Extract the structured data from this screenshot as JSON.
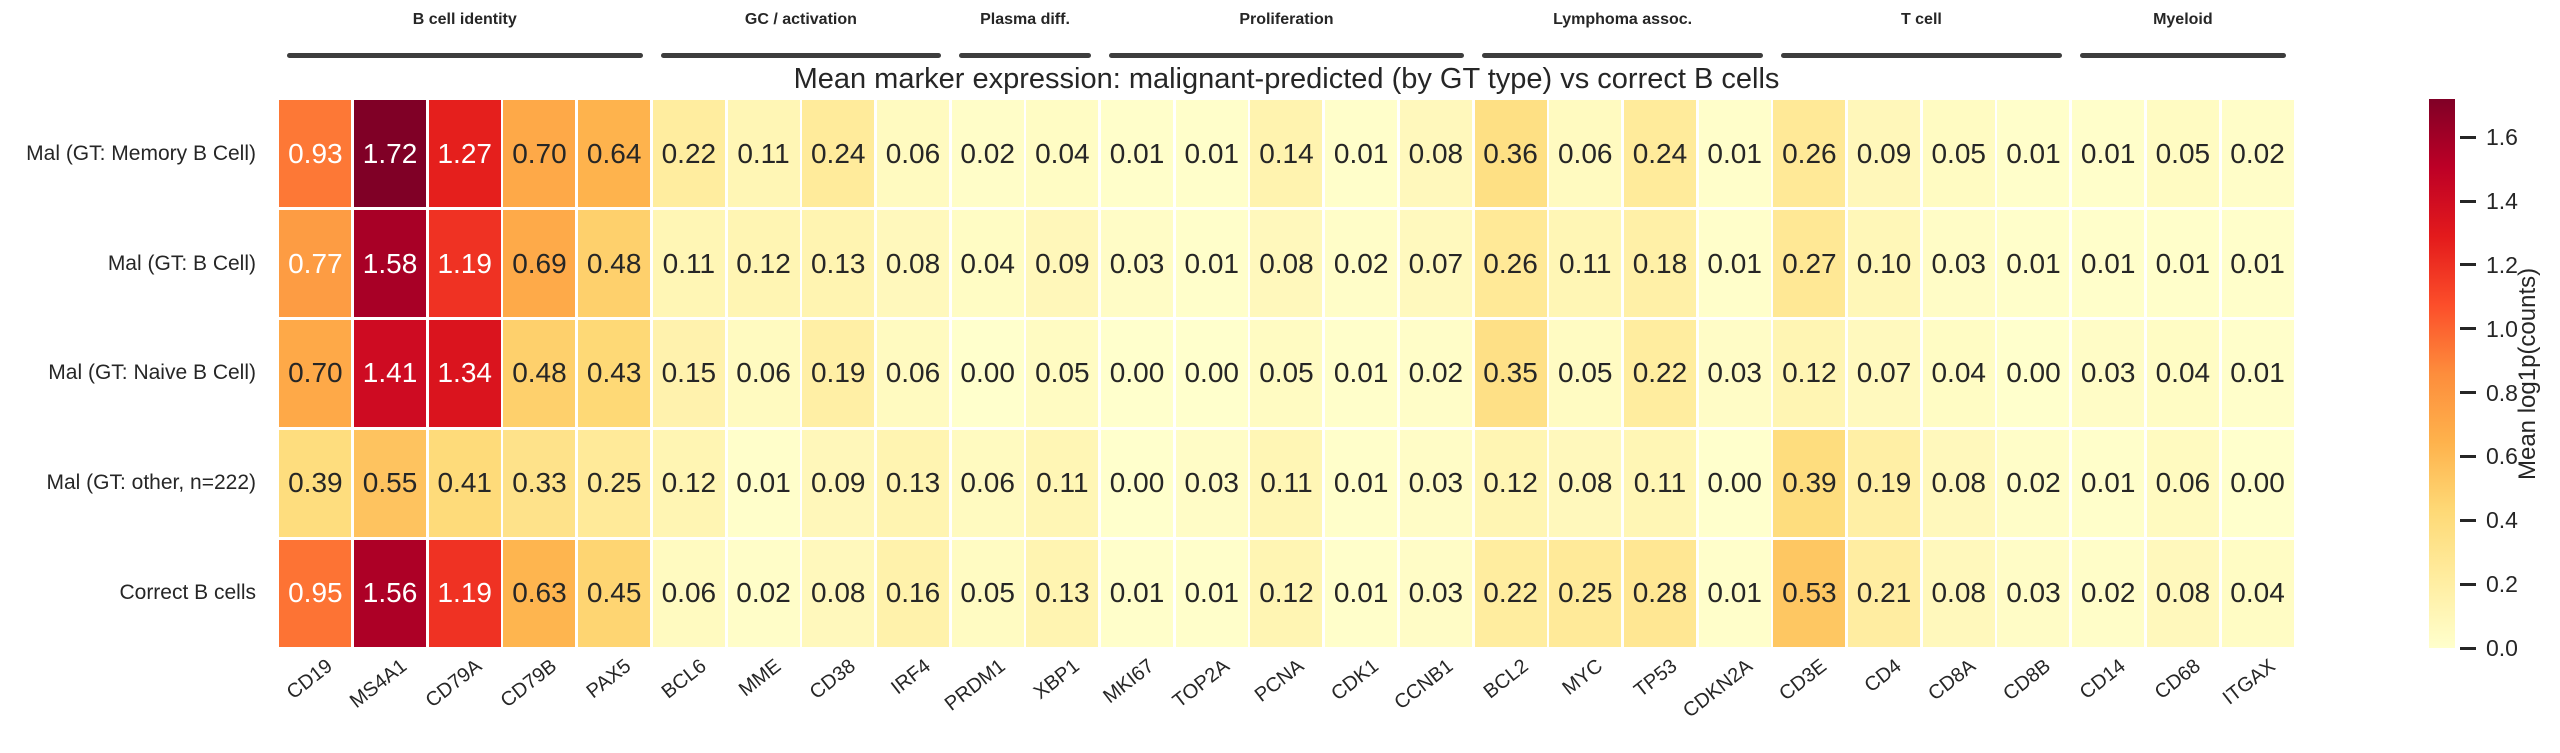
{
  "chart_data": {
    "type": "heatmap",
    "title": "Mean marker expression: malignant-predicted (by GT type) vs correct B cells",
    "rows": [
      "Mal (GT: Memory B Cell)",
      "Mal (GT: B Cell)",
      "Mal (GT: Naive B Cell)",
      "Mal (GT: other, n=222)",
      "Correct B cells"
    ],
    "columns": [
      "CD19",
      "MS4A1",
      "CD79A",
      "CD79B",
      "PAX5",
      "BCL6",
      "MME",
      "CD38",
      "IRF4",
      "PRDM1",
      "XBP1",
      "MKI67",
      "TOP2A",
      "PCNA",
      "CDK1",
      "CCNB1",
      "BCL2",
      "MYC",
      "TP53",
      "CDKN2A",
      "CD3E",
      "CD4",
      "CD8A",
      "CD8B",
      "CD14",
      "CD68",
      "ITGAX"
    ],
    "column_groups": [
      {
        "label": "B cell identity",
        "start": 0,
        "end": 4
      },
      {
        "label": "GC / activation",
        "start": 5,
        "end": 8
      },
      {
        "label": "Plasma diff.",
        "start": 9,
        "end": 10
      },
      {
        "label": "Proliferation",
        "start": 11,
        "end": 15
      },
      {
        "label": "Lymphoma assoc.",
        "start": 16,
        "end": 19
      },
      {
        "label": "T cell",
        "start": 20,
        "end": 23
      },
      {
        "label": "Myeloid",
        "start": 24,
        "end": 26
      }
    ],
    "values": [
      [
        0.93,
        1.72,
        1.27,
        0.7,
        0.64,
        0.22,
        0.11,
        0.24,
        0.06,
        0.02,
        0.04,
        0.01,
        0.01,
        0.14,
        0.01,
        0.08,
        0.36,
        0.06,
        0.24,
        0.01,
        0.26,
        0.09,
        0.05,
        0.01,
        0.01,
        0.05,
        0.02
      ],
      [
        0.77,
        1.58,
        1.19,
        0.69,
        0.48,
        0.11,
        0.12,
        0.13,
        0.08,
        0.04,
        0.09,
        0.03,
        0.01,
        0.08,
        0.02,
        0.07,
        0.26,
        0.11,
        0.18,
        0.01,
        0.27,
        0.1,
        0.03,
        0.01,
        0.01,
        0.01,
        0.01
      ],
      [
        0.7,
        1.41,
        1.34,
        0.48,
        0.43,
        0.15,
        0.06,
        0.19,
        0.06,
        0.0,
        0.05,
        0.0,
        0.0,
        0.05,
        0.01,
        0.02,
        0.35,
        0.05,
        0.22,
        0.03,
        0.12,
        0.07,
        0.04,
        0.0,
        0.03,
        0.04,
        0.01
      ],
      [
        0.39,
        0.55,
        0.41,
        0.33,
        0.25,
        0.12,
        0.01,
        0.09,
        0.13,
        0.06,
        0.11,
        0.0,
        0.03,
        0.11,
        0.01,
        0.03,
        0.12,
        0.08,
        0.11,
        0.0,
        0.39,
        0.19,
        0.08,
        0.02,
        0.01,
        0.06,
        0.0
      ],
      [
        0.95,
        1.56,
        1.19,
        0.63,
        0.45,
        0.06,
        0.02,
        0.08,
        0.16,
        0.05,
        0.13,
        0.01,
        0.01,
        0.12,
        0.01,
        0.03,
        0.22,
        0.25,
        0.28,
        0.01,
        0.53,
        0.21,
        0.08,
        0.03,
        0.02,
        0.08,
        0.04
      ]
    ],
    "value_format": ".2f",
    "annotation_white_text_threshold": 0.75,
    "colorbar": {
      "label": "Mean log1p(counts)",
      "ticks": [
        0.0,
        0.2,
        0.4,
        0.6,
        0.8,
        1.0,
        1.2,
        1.4,
        1.6
      ],
      "vmin": 0.0,
      "vmax": 1.72,
      "colormap": "YlOrRd",
      "stops": [
        "#ffffcc",
        "#ffeda0",
        "#fed976",
        "#feb24c",
        "#fd8d3c",
        "#fc4e2a",
        "#e31a1c",
        "#bd0026",
        "#800026"
      ],
      "position": "right"
    },
    "colors": {
      "text_dark": "#262626",
      "text_light": "#ffffff",
      "group_line": "#3d3d3d",
      "background": "#ffffff"
    },
    "layout": {
      "grid": "off",
      "cell_gap": "white 3px",
      "x_label_rotation_deg": 38
    }
  }
}
